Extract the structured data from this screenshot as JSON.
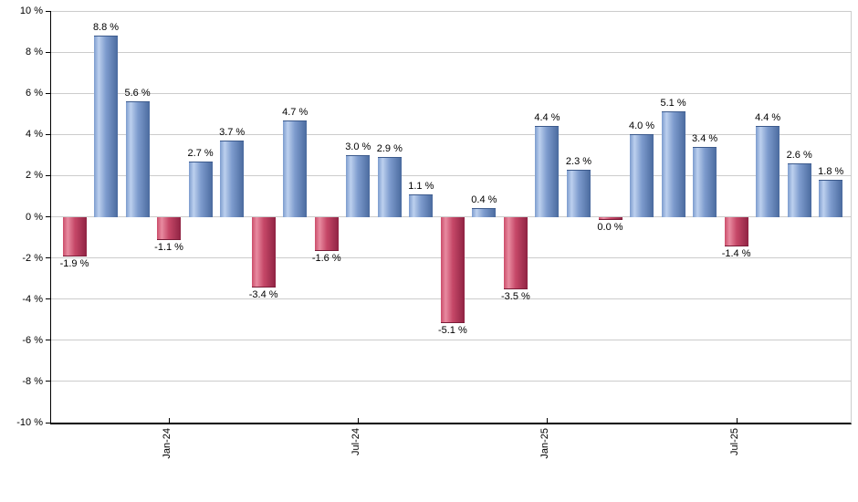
{
  "chart_data": {
    "type": "bar",
    "title": "",
    "xlabel": "",
    "ylabel": "",
    "ylim": [
      -10,
      10
    ],
    "grid": true,
    "grid_interval_pct": 2,
    "values": [
      -1.9,
      8.8,
      5.6,
      -1.1,
      2.7,
      3.7,
      -3.4,
      4.7,
      -1.6,
      3.0,
      2.9,
      1.1,
      -5.1,
      0.4,
      -3.5,
      4.4,
      2.3,
      0.0,
      4.0,
      5.1,
      3.4,
      -1.4,
      4.4,
      2.6,
      1.8
    ],
    "bar_labels": [
      "-1.9 %",
      "8.8 %",
      "5.6 %",
      "-1.1 %",
      "2.7 %",
      "3.7 %",
      "-3.4 %",
      "4.7 %",
      "-1.6 %",
      "3.0 %",
      "2.9 %",
      "1.1 %",
      "-5.1 %",
      "0.4 %",
      "-3.5 %",
      "4.4 %",
      "2.3 %",
      "0.0 %",
      "4.0 %",
      "5.1 %",
      "3.4 %",
      "-1.4 %",
      "4.4 %",
      "2.6 %",
      "1.8 %"
    ],
    "x_ticks": [
      {
        "index": 3,
        "label": "Jan-24"
      },
      {
        "index": 9,
        "label": "Jul-24"
      },
      {
        "index": 15,
        "label": "Jan-25"
      },
      {
        "index": 21,
        "label": "Jul-25"
      }
    ],
    "y_tick_labels": [
      "10 %",
      "8 %",
      "6 %",
      "4 %",
      "2 %",
      "0 %",
      "-2 %",
      "-4 %",
      "-6 %",
      "-8 %",
      "-10 %"
    ],
    "y_tick_values": [
      10,
      8,
      6,
      4,
      2,
      0,
      -2,
      -4,
      -6,
      -8,
      -10
    ],
    "colors": {
      "positive_bar_light": "#bcd0ee",
      "positive_bar_mid": "#7d9cce",
      "positive_bar_dark": "#4a6a9e",
      "negative_bar_light": "#e88ba0",
      "negative_bar_mid": "#c64868",
      "negative_bar_dark": "#8f2343",
      "gridline": "#cccccc",
      "axis": "#000000",
      "label_text": "#000000"
    },
    "legend": null
  }
}
